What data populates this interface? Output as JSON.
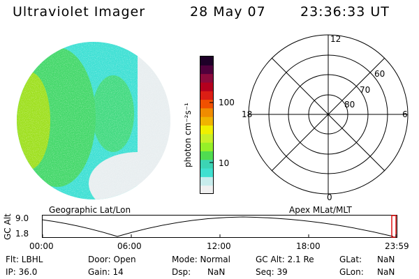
{
  "header": {
    "instrument": "Ultraviolet Imager",
    "date": "28 May 07",
    "time": "23:36:33 UT"
  },
  "colorbar": {
    "unit_label": "photon cm⁻²s⁻¹",
    "tick_labels": [
      "100",
      "10"
    ],
    "colors": [
      "#f0f0f0",
      "#c8ecec",
      "#40e0d0",
      "#3cd4b4",
      "#50dc50",
      "#96f028",
      "#c8f028",
      "#f0f000",
      "#f0b400",
      "#f08c00",
      "#f05000",
      "#dc1e14",
      "#b4001e",
      "#8c0a3c",
      "#50003c",
      "#1e0028"
    ]
  },
  "image": {
    "colors": {
      "light": "#e8eef0",
      "cyan": "#3ee0d4",
      "green": "#44d86a",
      "yellow_green": "#9ee01e"
    }
  },
  "polar": {
    "mlt_labels": {
      "top": "12",
      "bottom": "0",
      "left": "18",
      "right": "6"
    },
    "lat_labels": [
      "60",
      "70",
      "80"
    ]
  },
  "timeline": {
    "left_label": "Geographic Lat/Lon",
    "right_label": "Apex MLat/MLT",
    "axis_title": "GC Alt",
    "y_ticks": [
      "9.0",
      "1.8"
    ],
    "x_ticks": [
      "00:00",
      "06:00",
      "12:00",
      "18:00",
      "23:59"
    ],
    "marker_color": "#e01010"
  },
  "info": {
    "row1": {
      "flt": "Flt: LBHL",
      "door": "Door: Open",
      "mode": "Mode: Normal",
      "gcalt": "GC Alt: 2.1 Re",
      "glat_label": "GLat:",
      "glat_value": "NaN"
    },
    "row2": {
      "ip": "IP: 36.0",
      "gain": "Gain: 14",
      "dsp_label": "Dsp:",
      "dsp_value": "NaN",
      "seq": "Seq: 39",
      "glon_label": "GLon:",
      "glon_value": "NaN"
    }
  }
}
